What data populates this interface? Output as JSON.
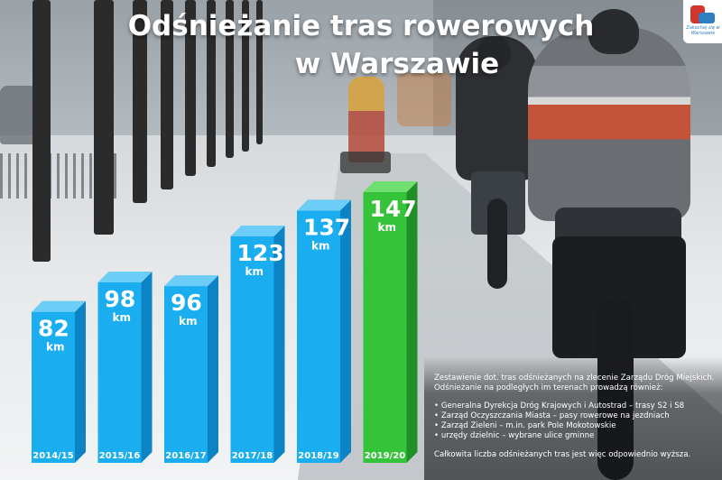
{
  "title": {
    "line1": "Odśnieżanie tras rowerowych",
    "line2": "w Warszawie"
  },
  "logo": {
    "icon": "city-logo",
    "text": "Zakochaj się w Warszawie"
  },
  "colors": {
    "bar_blue": "#1aaef0",
    "bar_blue_side": "#0b83c4",
    "bar_blue_top": "#6ccdf6",
    "bar_green": "#35c33a",
    "bar_green_side": "#1f8f26",
    "bar_green_top": "#6fe06f"
  },
  "chart_data": {
    "type": "bar",
    "title": "Odśnieżanie tras rowerowych w Warszawie",
    "categories": [
      "2014/15",
      "2015/16",
      "2016/17",
      "2017/18",
      "2018/19",
      "2019/20"
    ],
    "values": [
      82,
      98,
      96,
      123,
      137,
      147
    ],
    "unit": "km",
    "highlight_index": 5,
    "ylim": [
      0,
      147
    ],
    "grid": false,
    "legend": "none"
  },
  "info": {
    "intro": "Zestawienie dot. tras odśnieżanych na zlecenie Zarządu Dróg Miejskich. Odśnieżanie na podległych im terenach prowadzą również:",
    "items": [
      "Generalna Dyrekcja Dróg Krajowych i Autostrad – trasy S2 i S8",
      "Zarząd Oczyszczania Miasta – pasy rowerowe na jezdniach",
      "Zarząd Zieleni – m.in. park Pole Mokotowskie",
      "urzędy dzielnic – wybrane ulice gminne"
    ],
    "outro": "Całkowita liczba odśnieżanych tras jest więc odpowiednio wyższa."
  }
}
